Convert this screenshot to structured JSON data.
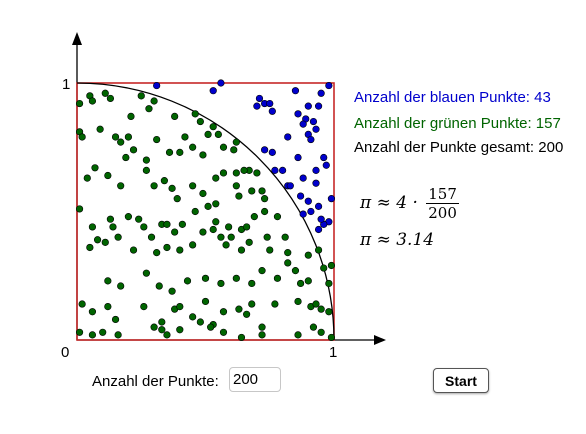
{
  "colors": {
    "blue": "#0000cc",
    "green": "#006400",
    "frame": "#c62828",
    "axis": "#000000"
  },
  "plot": {
    "origin_label": "0",
    "x_tick_label": "1",
    "y_tick_label": "1"
  },
  "stats": {
    "blue_label": "Anzahl der blauen Punkte: 43",
    "green_label": "Anzahl der grünen Punkte: 157",
    "total_label": "Anzahl der Punkte gesamt: 200"
  },
  "formula": {
    "line1_prefix": "π ≈ 4 ·",
    "numerator": "157",
    "denominator": "200",
    "line2": "π ≈ 3.14"
  },
  "controls": {
    "count_label": "Anzahl der Punkte:",
    "count_value": "200",
    "start_label": "Start"
  },
  "points": {
    "blue": [
      [
        0.31,
        0.99
      ],
      [
        0.56,
        1.0
      ],
      [
        0.53,
        0.97
      ],
      [
        0.71,
        0.94
      ],
      [
        0.7,
        0.91
      ],
      [
        0.73,
        0.92
      ],
      [
        0.75,
        0.92
      ],
      [
        0.85,
        0.97
      ],
      [
        0.98,
        0.99
      ],
      [
        0.95,
        0.96
      ],
      [
        0.76,
        0.89
      ],
      [
        0.9,
        0.91
      ],
      [
        0.94,
        0.91
      ],
      [
        0.86,
        0.88
      ],
      [
        0.89,
        0.86
      ],
      [
        0.92,
        0.85
      ],
      [
        0.88,
        0.84
      ],
      [
        0.9,
        0.8
      ],
      [
        0.91,
        0.78
      ],
      [
        0.82,
        0.79
      ],
      [
        0.73,
        0.74
      ],
      [
        0.76,
        0.73
      ],
      [
        0.86,
        0.71
      ],
      [
        0.96,
        0.71
      ],
      [
        0.97,
        0.68
      ],
      [
        0.93,
        0.66
      ],
      [
        0.77,
        0.66
      ],
      [
        0.88,
        0.63
      ],
      [
        0.82,
        0.6
      ],
      [
        0.93,
        0.61
      ],
      [
        0.83,
        0.6
      ],
      [
        0.87,
        0.56
      ],
      [
        0.9,
        0.54
      ],
      [
        0.94,
        0.52
      ],
      [
        0.88,
        0.49
      ],
      [
        0.91,
        0.5
      ],
      [
        0.99,
        0.55
      ],
      [
        0.98,
        0.46
      ],
      [
        0.96,
        0.45
      ],
      [
        0.94,
        0.43
      ],
      [
        0.95,
        0.47
      ],
      [
        0.93,
        0.82
      ],
      [
        0.8,
        0.66
      ]
    ],
    "green": [
      [
        0.05,
        0.95
      ],
      [
        0.06,
        0.93
      ],
      [
        0.11,
        0.96
      ],
      [
        0.13,
        0.94
      ],
      [
        0.01,
        0.92
      ],
      [
        0.25,
        0.95
      ],
      [
        0.3,
        0.93
      ],
      [
        0.28,
        0.9
      ],
      [
        0.21,
        0.87
      ],
      [
        0.2,
        0.79
      ],
      [
        0.38,
        0.87
      ],
      [
        0.46,
        0.88
      ],
      [
        0.48,
        0.85
      ],
      [
        0.53,
        0.83
      ],
      [
        0.55,
        0.8
      ],
      [
        0.51,
        0.8
      ],
      [
        0.01,
        0.81
      ],
      [
        0.02,
        0.79
      ],
      [
        0.09,
        0.82
      ],
      [
        0.15,
        0.79
      ],
      [
        0.17,
        0.77
      ],
      [
        0.19,
        0.71
      ],
      [
        0.22,
        0.74
      ],
      [
        0.27,
        0.7
      ],
      [
        0.31,
        0.78
      ],
      [
        0.36,
        0.73
      ],
      [
        0.4,
        0.73
      ],
      [
        0.42,
        0.79
      ],
      [
        0.45,
        0.75
      ],
      [
        0.49,
        0.72
      ],
      [
        0.57,
        0.75
      ],
      [
        0.61,
        0.74
      ],
      [
        0.62,
        0.77
      ],
      [
        0.67,
        0.66
      ],
      [
        0.7,
        0.65
      ],
      [
        0.07,
        0.67
      ],
      [
        0.12,
        0.64
      ],
      [
        0.17,
        0.6
      ],
      [
        0.27,
        0.66
      ],
      [
        0.3,
        0.6
      ],
      [
        0.34,
        0.62
      ],
      [
        0.37,
        0.59
      ],
      [
        0.39,
        0.55
      ],
      [
        0.45,
        0.6
      ],
      [
        0.49,
        0.57
      ],
      [
        0.54,
        0.63
      ],
      [
        0.57,
        0.65
      ],
      [
        0.62,
        0.65
      ],
      [
        0.65,
        0.66
      ],
      [
        0.62,
        0.6
      ],
      [
        0.63,
        0.56
      ],
      [
        0.68,
        0.58
      ],
      [
        0.72,
        0.58
      ],
      [
        0.73,
        0.55
      ],
      [
        0.04,
        0.63
      ],
      [
        0.01,
        0.51
      ],
      [
        0.06,
        0.44
      ],
      [
        0.13,
        0.47
      ],
      [
        0.14,
        0.44
      ],
      [
        0.16,
        0.4
      ],
      [
        0.2,
        0.48
      ],
      [
        0.24,
        0.47
      ],
      [
        0.26,
        0.44
      ],
      [
        0.29,
        0.4
      ],
      [
        0.33,
        0.45
      ],
      [
        0.35,
        0.45
      ],
      [
        0.38,
        0.42
      ],
      [
        0.41,
        0.45
      ],
      [
        0.46,
        0.5
      ],
      [
        0.51,
        0.52
      ],
      [
        0.54,
        0.53
      ],
      [
        0.54,
        0.46
      ],
      [
        0.59,
        0.44
      ],
      [
        0.6,
        0.4
      ],
      [
        0.64,
        0.43
      ],
      [
        0.66,
        0.44
      ],
      [
        0.69,
        0.48
      ],
      [
        0.73,
        0.5
      ],
      [
        0.78,
        0.48
      ],
      [
        0.81,
        0.4
      ],
      [
        0.05,
        0.36
      ],
      [
        0.08,
        0.39
      ],
      [
        0.11,
        0.38
      ],
      [
        0.22,
        0.35
      ],
      [
        0.31,
        0.34
      ],
      [
        0.35,
        0.36
      ],
      [
        0.4,
        0.35
      ],
      [
        0.45,
        0.37
      ],
      [
        0.49,
        0.42
      ],
      [
        0.53,
        0.43
      ],
      [
        0.56,
        0.4
      ],
      [
        0.58,
        0.37
      ],
      [
        0.64,
        0.35
      ],
      [
        0.67,
        0.38
      ],
      [
        0.74,
        0.4
      ],
      [
        0.75,
        0.35
      ],
      [
        0.82,
        0.34
      ],
      [
        0.82,
        0.3
      ],
      [
        0.85,
        0.27
      ],
      [
        0.9,
        0.33
      ],
      [
        0.94,
        0.35
      ],
      [
        0.96,
        0.28
      ],
      [
        0.98,
        0.22
      ],
      [
        0.99,
        0.29
      ],
      [
        0.12,
        0.23
      ],
      [
        0.17,
        0.21
      ],
      [
        0.27,
        0.26
      ],
      [
        0.32,
        0.21
      ],
      [
        0.37,
        0.19
      ],
      [
        0.43,
        0.23
      ],
      [
        0.5,
        0.24
      ],
      [
        0.56,
        0.22
      ],
      [
        0.62,
        0.24
      ],
      [
        0.68,
        0.22
      ],
      [
        0.72,
        0.27
      ],
      [
        0.78,
        0.24
      ],
      [
        0.87,
        0.22
      ],
      [
        0.9,
        0.23
      ],
      [
        0.02,
        0.14
      ],
      [
        0.06,
        0.11
      ],
      [
        0.12,
        0.13
      ],
      [
        0.15,
        0.08
      ],
      [
        0.26,
        0.13
      ],
      [
        0.33,
        0.07
      ],
      [
        0.38,
        0.12
      ],
      [
        0.4,
        0.13
      ],
      [
        0.45,
        0.09
      ],
      [
        0.5,
        0.15
      ],
      [
        0.53,
        0.06
      ],
      [
        0.57,
        0.11
      ],
      [
        0.63,
        0.12
      ],
      [
        0.66,
        0.1
      ],
      [
        0.68,
        0.14
      ],
      [
        0.72,
        0.05
      ],
      [
        0.77,
        0.14
      ],
      [
        0.86,
        0.15
      ],
      [
        0.91,
        0.13
      ],
      [
        0.93,
        0.14
      ],
      [
        0.95,
        0.12
      ],
      [
        0.98,
        0.11
      ],
      [
        0.06,
        0.02
      ],
      [
        0.1,
        0.03
      ],
      [
        0.16,
        0.02
      ],
      [
        0.3,
        0.05
      ],
      [
        0.33,
        0.04
      ],
      [
        0.35,
        0.02
      ],
      [
        0.4,
        0.04
      ],
      [
        0.48,
        0.07
      ],
      [
        0.52,
        0.05
      ],
      [
        0.57,
        0.03
      ],
      [
        0.64,
        0.01
      ],
      [
        0.72,
        0.02
      ],
      [
        0.86,
        0.02
      ],
      [
        0.92,
        0.05
      ],
      [
        0.95,
        0.03
      ],
      [
        0.99,
        0.01
      ],
      [
        0.01,
        0.03
      ]
    ]
  }
}
